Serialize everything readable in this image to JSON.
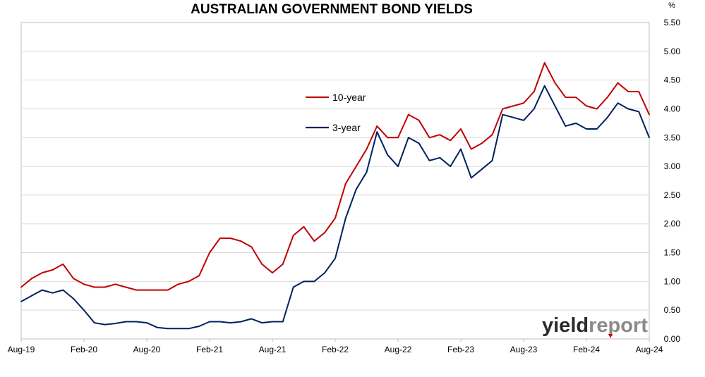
{
  "chart_data": {
    "type": "line",
    "title": "AUSTRALIAN GOVERNMENT BOND YIELDS",
    "ylabel": "%",
    "xlabel": "",
    "ylim": [
      0,
      5.5
    ],
    "y_ticks": [
      "0.00",
      "0.50",
      "1.00",
      "1.50",
      "2.00",
      "2.50",
      "3.00",
      "3.50",
      "4.00",
      "4.50",
      "5.00",
      "5.50"
    ],
    "x_tick_labels": [
      "Aug-19",
      "Feb-20",
      "Aug-20",
      "Feb-21",
      "Aug-21",
      "Feb-22",
      "Aug-22",
      "Feb-23",
      "Aug-23",
      "Feb-24",
      "Aug-24"
    ],
    "x_range": [
      "2019-08",
      "2024-08"
    ],
    "grid": "horizontal",
    "legend": "center",
    "series": [
      {
        "name": "10-year",
        "color": "#c00000",
        "x": [
          "2019-08",
          "2019-09",
          "2019-10",
          "2019-11",
          "2019-12",
          "2020-01",
          "2020-02",
          "2020-03",
          "2020-04",
          "2020-05",
          "2020-06",
          "2020-07",
          "2020-08",
          "2020-09",
          "2020-10",
          "2020-11",
          "2020-12",
          "2021-01",
          "2021-02",
          "2021-03",
          "2021-04",
          "2021-05",
          "2021-06",
          "2021-07",
          "2021-08",
          "2021-09",
          "2021-10",
          "2021-11",
          "2021-12",
          "2022-01",
          "2022-02",
          "2022-03",
          "2022-04",
          "2022-05",
          "2022-06",
          "2022-07",
          "2022-08",
          "2022-09",
          "2022-10",
          "2022-11",
          "2022-12",
          "2023-01",
          "2023-02",
          "2023-03",
          "2023-04",
          "2023-05",
          "2023-06",
          "2023-07",
          "2023-08",
          "2023-09",
          "2023-10",
          "2023-11",
          "2023-12",
          "2024-01",
          "2024-02",
          "2024-03",
          "2024-04",
          "2024-05",
          "2024-06",
          "2024-07",
          "2024-08"
        ],
        "values": [
          0.9,
          1.05,
          1.15,
          1.2,
          1.3,
          1.05,
          0.95,
          0.9,
          0.9,
          0.95,
          0.9,
          0.85,
          0.85,
          0.85,
          0.85,
          0.95,
          1.0,
          1.1,
          1.5,
          1.75,
          1.75,
          1.7,
          1.6,
          1.3,
          1.15,
          1.3,
          1.8,
          1.95,
          1.7,
          1.85,
          2.1,
          2.7,
          3.0,
          3.3,
          3.7,
          3.5,
          3.5,
          3.9,
          3.8,
          3.5,
          3.55,
          3.45,
          3.65,
          3.3,
          3.4,
          3.55,
          4.0,
          4.05,
          4.1,
          4.3,
          4.8,
          4.45,
          4.2,
          4.2,
          4.05,
          4.0,
          4.2,
          4.45,
          4.3,
          4.3,
          3.9
        ]
      },
      {
        "name": "3-year",
        "color": "#002060",
        "x": [
          "2019-08",
          "2019-09",
          "2019-10",
          "2019-11",
          "2019-12",
          "2020-01",
          "2020-02",
          "2020-03",
          "2020-04",
          "2020-05",
          "2020-06",
          "2020-07",
          "2020-08",
          "2020-09",
          "2020-10",
          "2020-11",
          "2020-12",
          "2021-01",
          "2021-02",
          "2021-03",
          "2021-04",
          "2021-05",
          "2021-06",
          "2021-07",
          "2021-08",
          "2021-09",
          "2021-10",
          "2021-11",
          "2021-12",
          "2022-01",
          "2022-02",
          "2022-03",
          "2022-04",
          "2022-05",
          "2022-06",
          "2022-07",
          "2022-08",
          "2022-09",
          "2022-10",
          "2022-11",
          "2022-12",
          "2023-01",
          "2023-02",
          "2023-03",
          "2023-04",
          "2023-05",
          "2023-06",
          "2023-07",
          "2023-08",
          "2023-09",
          "2023-10",
          "2023-11",
          "2023-12",
          "2024-01",
          "2024-02",
          "2024-03",
          "2024-04",
          "2024-05",
          "2024-06",
          "2024-07",
          "2024-08"
        ],
        "values": [
          0.65,
          0.75,
          0.85,
          0.8,
          0.85,
          0.7,
          0.5,
          0.28,
          0.25,
          0.27,
          0.3,
          0.3,
          0.28,
          0.2,
          0.18,
          0.18,
          0.18,
          0.22,
          0.3,
          0.3,
          0.28,
          0.3,
          0.35,
          0.28,
          0.3,
          0.3,
          0.9,
          1.0,
          1.0,
          1.15,
          1.4,
          2.1,
          2.6,
          2.9,
          3.6,
          3.2,
          3.0,
          3.5,
          3.4,
          3.1,
          3.15,
          3.0,
          3.3,
          2.8,
          2.95,
          3.1,
          3.9,
          3.85,
          3.8,
          4.0,
          4.4,
          4.05,
          3.7,
          3.75,
          3.65,
          3.65,
          3.85,
          4.1,
          4.0,
          3.95,
          3.5
        ]
      }
    ]
  },
  "watermark": {
    "part1": "yield",
    "part2": "report",
    "accent_color": "#cc0000"
  }
}
